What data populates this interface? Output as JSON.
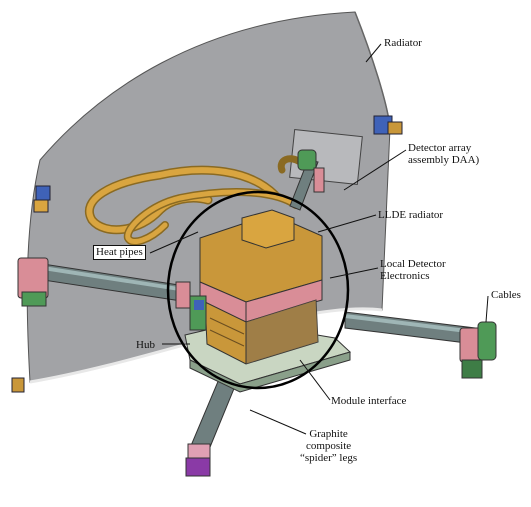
{
  "labels": {
    "radiator": "Radiator",
    "detector_array": "Detector array\nassembly DAA)",
    "llde_radiator": "LLDE radiator",
    "heat_pipes": "Heat pipes",
    "local_detector": "Local Detector\nElectronics",
    "cables": "Cables",
    "hub": "Hub",
    "module_interface": "Module interface",
    "spider_legs": "Graphite\ncomposite\n“spider” legs"
  },
  "colors": {
    "radiator_panel": "#a2a3a6",
    "heat_pipe": "#d9a540",
    "detector_housing": "#c9973a",
    "pink_plate": "#d98d97",
    "leg": "#6f7f7f",
    "leg_joint_green": "#4f9a57",
    "module_interface": "#c9d6c2",
    "blue_bracket": "#3f62b8",
    "purple_foot": "#8a3aa6"
  }
}
